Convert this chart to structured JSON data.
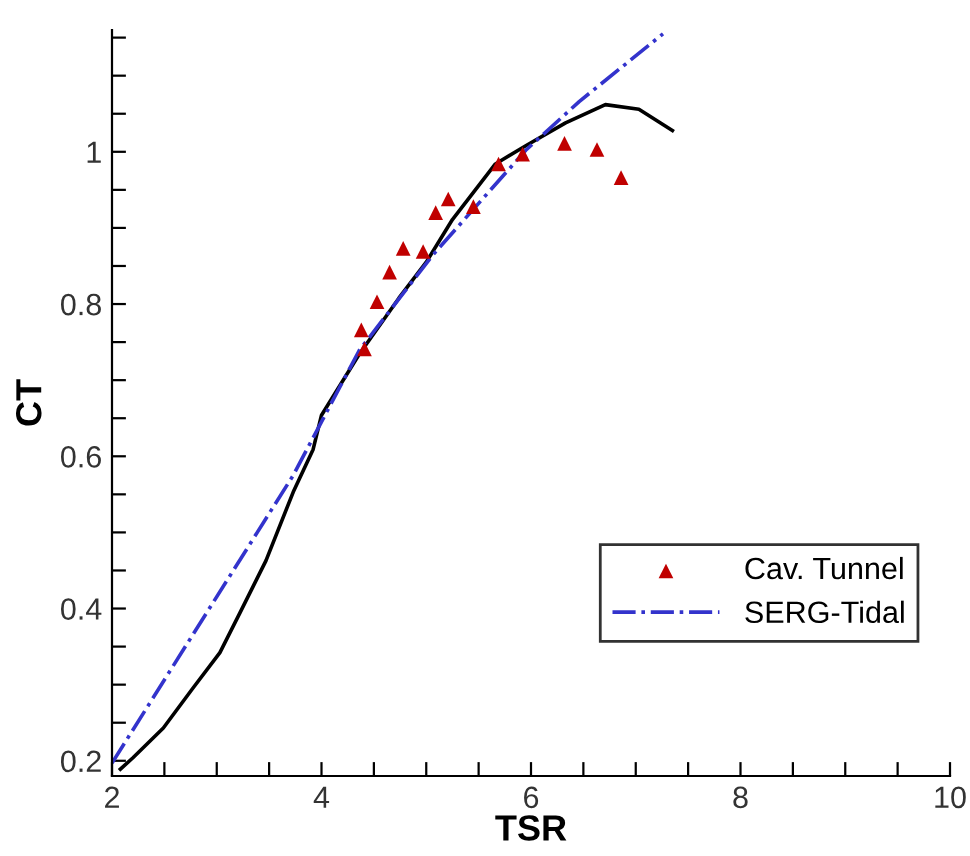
{
  "chart_data": {
    "type": "line",
    "xlabel": "TSR",
    "ylabel": "CT",
    "xlim": [
      2,
      10
    ],
    "ylim": [
      0.18,
      1.16
    ],
    "xticks": [
      2,
      {
        "value": 2.5,
        "label": null
      },
      {
        "value": 3,
        "label": null
      },
      {
        "value": 3.5,
        "label": null
      },
      4,
      {
        "value": 4.5,
        "label": null
      },
      {
        "value": 5,
        "label": null
      },
      {
        "value": 5.5,
        "label": null
      },
      6,
      {
        "value": 6.5,
        "label": null
      },
      {
        "value": 7,
        "label": null
      },
      {
        "value": 7.5,
        "label": null
      },
      8,
      {
        "value": 8.5,
        "label": null
      },
      {
        "value": 9,
        "label": null
      },
      {
        "value": 9.5,
        "label": null
      },
      10
    ],
    "yticks": [
      0.2,
      {
        "value": 0.25,
        "label": null
      },
      {
        "value": 0.3,
        "label": null
      },
      {
        "value": 0.35,
        "label": null
      },
      0.4,
      {
        "value": 0.45,
        "label": null
      },
      {
        "value": 0.5,
        "label": null
      },
      {
        "value": 0.55,
        "label": null
      },
      0.6,
      {
        "value": 0.65,
        "label": null
      },
      {
        "value": 0.7,
        "label": null
      },
      {
        "value": 0.75,
        "label": null
      },
      0.8,
      {
        "value": 0.85,
        "label": null
      },
      {
        "value": 0.9,
        "label": null
      },
      {
        "value": 0.95,
        "label": null
      },
      1,
      {
        "value": 1.05,
        "label": null
      },
      {
        "value": 1.1,
        "label": null
      },
      {
        "value": 1.15,
        "label": null
      }
    ],
    "grid": false,
    "legend": "bottom right",
    "series": [
      {
        "name": "Cav. Tunnel",
        "type": "scatter",
        "marker": "triangle",
        "color": "#c00000",
        "x": [
          4.38,
          4.41,
          4.53,
          4.65,
          4.78,
          4.97,
          5.09,
          5.21,
          5.45,
          5.69,
          5.92,
          6.32,
          6.63,
          6.86
        ],
        "values": [
          0.766,
          0.741,
          0.803,
          0.842,
          0.873,
          0.869,
          0.92,
          0.938,
          0.928,
          0.984,
          0.997,
          1.011,
          1.003,
          0.966
        ]
      },
      {
        "line_style": "solid",
        "color": "#000000",
        "x": [
          2.08,
          2.2,
          2.49,
          2.77,
          3.03,
          3.22,
          3.47,
          3.73,
          3.92,
          4.0,
          4.36,
          4.74,
          5.0,
          5.25,
          5.66,
          5.95,
          6.33,
          6.71,
          7.03,
          7.35
        ],
        "values": [
          0.189,
          0.204,
          0.243,
          0.295,
          0.342,
          0.394,
          0.463,
          0.553,
          0.609,
          0.654,
          0.734,
          0.808,
          0.855,
          0.911,
          0.984,
          1.008,
          1.038,
          1.062,
          1.056,
          1.028
        ]
      },
      {
        "name": "SERG-Tidal",
        "type": "line",
        "line_style": "dashdot",
        "color": "#3333cc",
        "x": [
          2.0,
          3.73,
          4.36,
          5.06,
          5.95,
          6.46,
          7.26
        ],
        "values": [
          0.197,
          0.575,
          0.739,
          0.864,
          1.002,
          1.066,
          1.155
        ]
      }
    ]
  }
}
